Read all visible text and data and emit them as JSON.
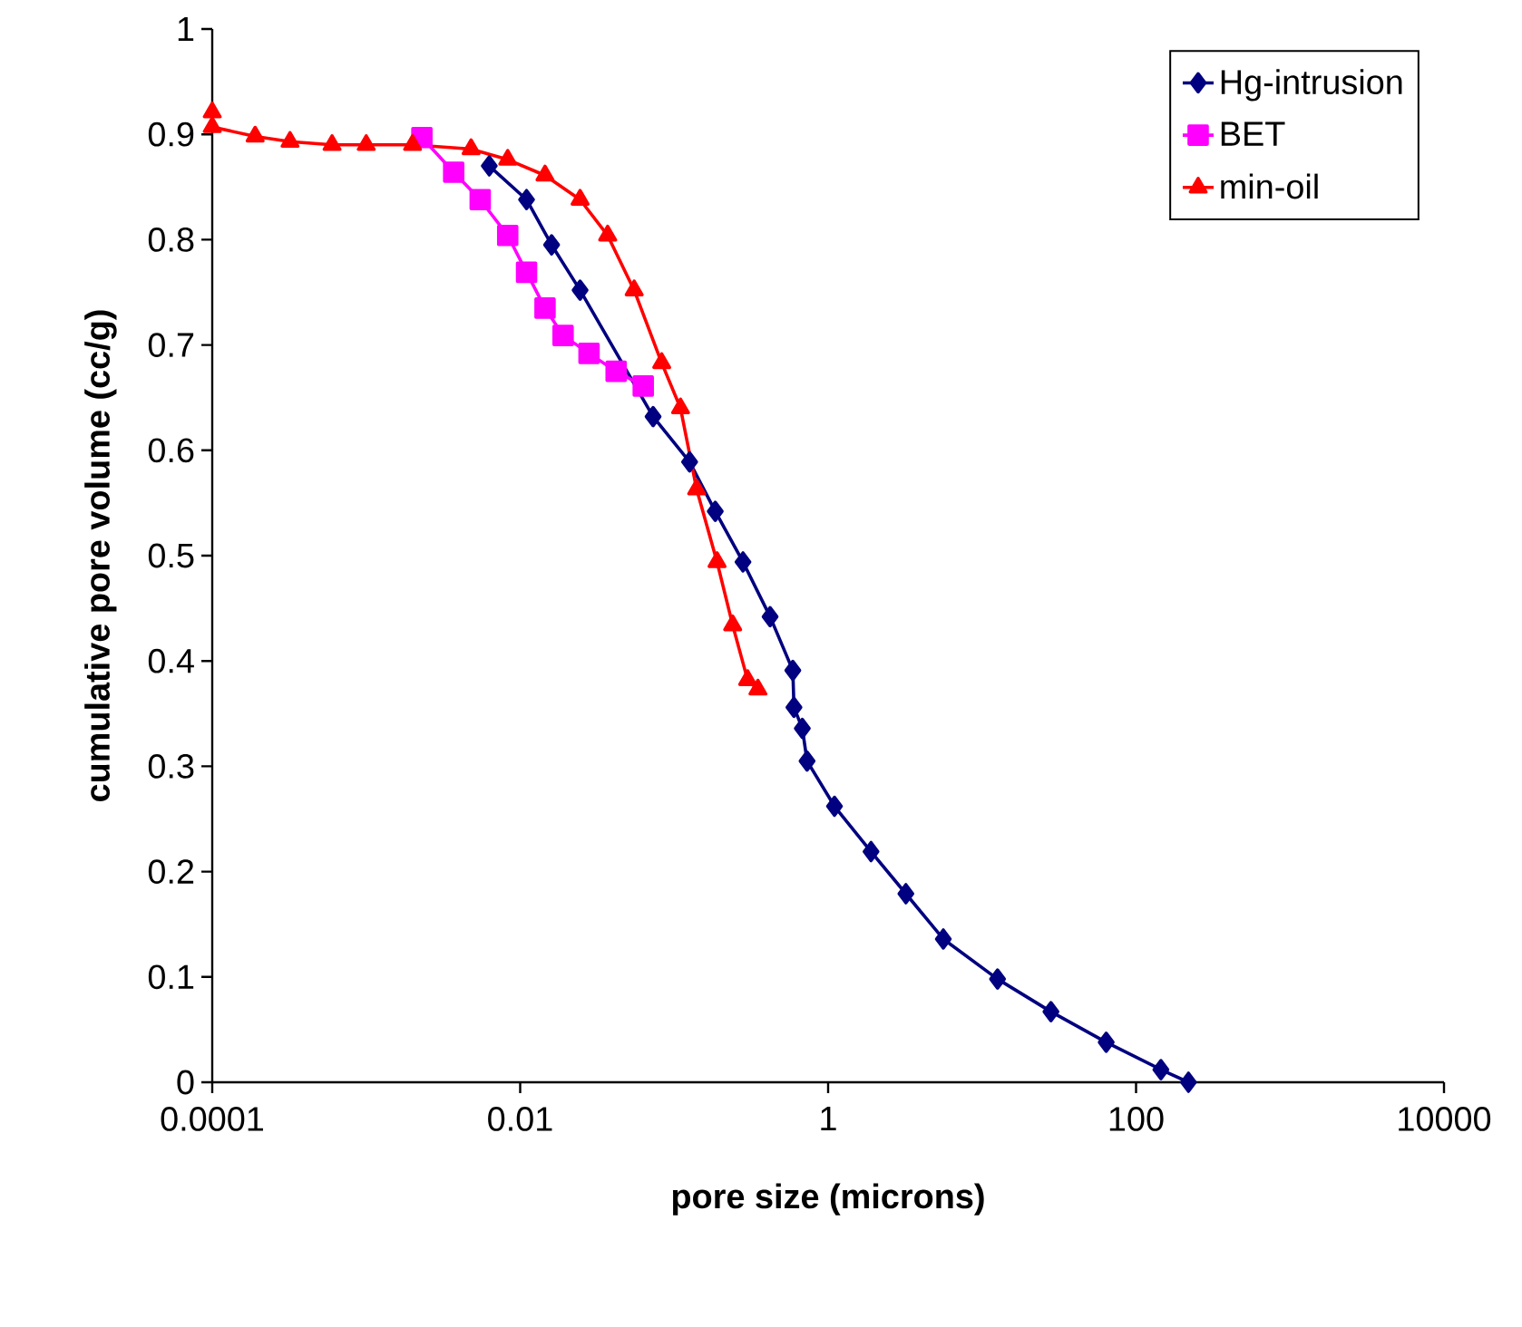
{
  "chart_data": {
    "type": "line",
    "xlabel": "pore size (microns)",
    "ylabel": "cumulative pore volume (cc/g)",
    "log": "x",
    "xlim": [
      0.0001,
      10000
    ],
    "xticks": [
      0.0001,
      0.01,
      1,
      100,
      10000
    ],
    "ylim": [
      0,
      1
    ],
    "yticks": [
      0,
      0.1,
      0.2,
      0.3,
      0.4,
      0.5,
      0.6,
      0.7,
      0.8,
      0.9,
      1
    ],
    "legend": "top right",
    "series": [
      {
        "name": "Hg-intrusion",
        "color": "#000080",
        "marker": "diamond",
        "x": [
          0.0063,
          0.011,
          0.016,
          0.0245,
          0.073,
          0.126,
          0.185,
          0.28,
          0.42,
          0.59,
          0.6,
          0.68,
          0.73,
          1.1,
          1.9,
          3.2,
          5.6,
          12.6,
          28,
          64,
          145,
          219
        ],
        "values": [
          0.87,
          0.838,
          0.795,
          0.752,
          0.632,
          0.589,
          0.542,
          0.494,
          0.442,
          0.391,
          0.356,
          0.336,
          0.305,
          0.262,
          0.219,
          0.179,
          0.136,
          0.098,
          0.067,
          0.038,
          0.012,
          0
        ]
      },
      {
        "name": "BET",
        "color": "#ff00ff",
        "marker": "square",
        "x": [
          0.0023,
          0.0037,
          0.0055,
          0.0083,
          0.011,
          0.0145,
          0.019,
          0.028,
          0.042,
          0.063
        ],
        "values": [
          0.897,
          0.864,
          0.838,
          0.804,
          0.769,
          0.735,
          0.709,
          0.692,
          0.675,
          0.661
        ]
      },
      {
        "name": "min-oil",
        "color": "#ff0000",
        "marker": "triangle",
        "x": [
          0.0001,
          0.0001,
          0.00019,
          0.00032,
          0.0006,
          0.001,
          0.002,
          0.0048,
          0.0083,
          0.0145,
          0.0245,
          0.037,
          0.055,
          0.083,
          0.11,
          0.14,
          0.19,
          0.24,
          0.3,
          0.35
        ],
        "values": [
          0.921,
          0.907,
          0.898,
          0.893,
          0.89,
          0.89,
          0.89,
          0.886,
          0.876,
          0.861,
          0.838,
          0.804,
          0.752,
          0.683,
          0.64,
          0.563,
          0.494,
          0.434,
          0.382,
          0.373
        ]
      }
    ]
  }
}
